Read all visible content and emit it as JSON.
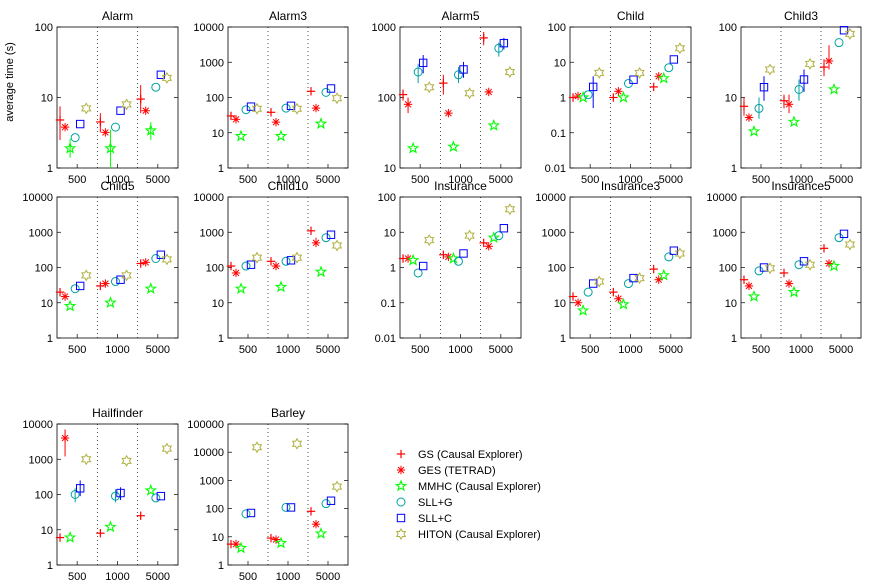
{
  "legend": {
    "placement": "bottom-right",
    "items": [
      {
        "key": "GS",
        "label": "GS (Causal Explorer)",
        "marker": "plus",
        "color": "#ff0000"
      },
      {
        "key": "GES",
        "label": "GES (TETRAD)",
        "marker": "asterisk",
        "color": "#ff0000"
      },
      {
        "key": "MMHC",
        "label": "MMHC (Causal Explorer)",
        "marker": "pentagram",
        "color": "#00ff00"
      },
      {
        "key": "SLLG",
        "label": "SLL+G",
        "marker": "circle",
        "color": "#00a0a0"
      },
      {
        "key": "SLLC",
        "label": "SLL+C",
        "marker": "square",
        "color": "#0000ff"
      },
      {
        "key": "HITON",
        "label": "HITON (Causal Explorer)",
        "marker": "hexagram",
        "color": "#b0b040"
      }
    ]
  },
  "chart_data": [
    {
      "type": "scatter",
      "title": "Alarm",
      "ylabel": "average time (s)",
      "yscale": "log",
      "ylim": [
        1,
        100
      ],
      "yticks": [
        "1",
        "10",
        "100"
      ],
      "categories": [
        "500",
        "1000",
        "5000"
      ],
      "series": [
        {
          "key": "GS",
          "values": [
            4.8,
            4.5,
            9.5
          ],
          "err": [
            [
              2.5,
              7.5
            ],
            [
              3.2,
              6
            ],
            [
              6,
              15
            ]
          ]
        },
        {
          "key": "GES",
          "values": [
            3.8,
            3.2,
            6.5
          ]
        },
        {
          "key": "MMHC",
          "values": [
            1.9,
            1.9,
            3.4
          ],
          "err": [
            [
              1.4,
              2.6
            ],
            [
              1,
              3.5
            ],
            [
              2.5,
              4.5
            ]
          ]
        },
        {
          "key": "SLLG",
          "values": [
            2.7,
            3.8,
            14
          ]
        },
        {
          "key": "SLLC",
          "values": [
            4.2,
            6.5,
            21
          ]
        },
        {
          "key": "HITON",
          "values": [
            7,
            8,
            19
          ]
        }
      ]
    },
    {
      "type": "scatter",
      "title": "Alarm3",
      "yscale": "log",
      "ylim": [
        1,
        10000
      ],
      "yticks": [
        "1",
        "10",
        "100",
        "1000",
        "10000"
      ],
      "categories": [
        "500",
        "1000",
        "5000"
      ],
      "series": [
        {
          "key": "GS",
          "values": [
            30,
            38,
            150
          ]
        },
        {
          "key": "GES",
          "values": [
            24,
            20,
            50
          ]
        },
        {
          "key": "MMHC",
          "values": [
            8,
            8,
            18
          ]
        },
        {
          "key": "SLLG",
          "values": [
            45,
            50,
            140
          ]
        },
        {
          "key": "SLLC",
          "values": [
            55,
            58,
            180
          ]
        },
        {
          "key": "HITON",
          "values": [
            48,
            48,
            95
          ]
        }
      ]
    },
    {
      "type": "scatter",
      "title": "Alarm5",
      "yscale": "log",
      "ylim": [
        10,
        1000
      ],
      "yticks": [
        "10",
        "100",
        "1000"
      ],
      "categories": [
        "500",
        "1000",
        "5000"
      ],
      "series": [
        {
          "key": "GS",
          "values": [
            110,
            160,
            700
          ],
          "err": [
            [
              90,
              130
            ],
            [
              110,
              210
            ],
            [
              550,
              850
            ]
          ]
        },
        {
          "key": "GES",
          "values": [
            80,
            60,
            120
          ],
          "err": [
            [
              60,
              100
            ],
            null,
            null
          ]
        },
        {
          "key": "MMHC",
          "values": [
            19,
            20,
            40
          ]
        },
        {
          "key": "SLLG",
          "values": [
            230,
            210,
            500
          ],
          "err": [
            [
              160,
              300
            ],
            [
              160,
              270
            ],
            [
              380,
              600
            ]
          ]
        },
        {
          "key": "SLLC",
          "values": [
            310,
            250,
            590
          ],
          "err": [
            [
              220,
              400
            ],
            [
              190,
              320
            ],
            [
              480,
              700
            ]
          ]
        },
        {
          "key": "HITON",
          "values": [
            140,
            115,
            230
          ]
        }
      ]
    },
    {
      "type": "scatter",
      "title": "Child",
      "yscale": "log",
      "ylim": [
        0.01,
        100
      ],
      "yticks": [
        "0.01",
        "0.1",
        "1",
        "10",
        "100"
      ],
      "categories": [
        "500",
        "1000",
        "5000"
      ],
      "series": [
        {
          "key": "GS",
          "values": [
            1,
            1,
            2
          ]
        },
        {
          "key": "GES",
          "values": [
            1.1,
            1.5,
            4
          ]
        },
        {
          "key": "MMHC",
          "values": [
            1,
            1,
            3.5
          ]
        },
        {
          "key": "SLLG",
          "values": [
            1.2,
            2.5,
            7
          ]
        },
        {
          "key": "SLLC",
          "values": [
            2,
            3.2,
            12
          ],
          "err": [
            [
              0.5,
              4
            ],
            null,
            null
          ]
        },
        {
          "key": "HITON",
          "values": [
            5,
            5,
            25
          ]
        }
      ]
    },
    {
      "type": "scatter",
      "title": "Child3",
      "yscale": "log",
      "ylim": [
        1,
        100
      ],
      "yticks": [
        "1",
        "10",
        "100"
      ],
      "categories": [
        "500",
        "1000",
        "5000"
      ],
      "series": [
        {
          "key": "GS",
          "values": [
            7.5,
            9,
            27
          ],
          "err": [
            [
              5.5,
              10
            ],
            [
              7,
              11
            ],
            [
              20,
              35
            ]
          ]
        },
        {
          "key": "GES",
          "values": [
            5.2,
            8,
            33
          ],
          "err": [
            null,
            [
              6,
              11
            ],
            [
              25,
              55
            ]
          ]
        },
        {
          "key": "MMHC",
          "values": [
            3.3,
            4.5,
            13
          ]
        },
        {
          "key": "SLLG",
          "values": [
            7,
            13,
            60
          ],
          "err": [
            [
              5,
              10
            ],
            [
              9,
              18
            ],
            null
          ]
        },
        {
          "key": "SLLC",
          "values": [
            14,
            18,
            90
          ],
          "err": [
            [
              9,
              20
            ],
            [
              12,
              25
            ],
            null
          ]
        },
        {
          "key": "HITON",
          "values": [
            25,
            30,
            80
          ]
        }
      ]
    },
    {
      "type": "scatter",
      "title": "Child5",
      "yscale": "log",
      "ylim": [
        1,
        10000
      ],
      "yticks": [
        "1",
        "10",
        "100",
        "1000",
        "10000"
      ],
      "categories": [
        "500",
        "1000",
        "5000"
      ],
      "series": [
        {
          "key": "GS",
          "values": [
            20,
            30,
            130
          ]
        },
        {
          "key": "GES",
          "values": [
            15,
            35,
            140
          ]
        },
        {
          "key": "MMHC",
          "values": [
            8,
            10,
            25
          ]
        },
        {
          "key": "SLLG",
          "values": [
            25,
            40,
            180
          ]
        },
        {
          "key": "SLLC",
          "values": [
            30,
            45,
            230
          ]
        },
        {
          "key": "HITON",
          "values": [
            60,
            60,
            170
          ]
        }
      ]
    },
    {
      "type": "scatter",
      "title": "Child10",
      "yscale": "log",
      "ylim": [
        1,
        10000
      ],
      "yticks": [
        "1",
        "10",
        "100",
        "1000",
        "10000"
      ],
      "categories": [
        "500",
        "1000",
        "5000"
      ],
      "series": [
        {
          "key": "GS",
          "values": [
            110,
            150,
            1100
          ]
        },
        {
          "key": "GES",
          "values": [
            70,
            110,
            500
          ],
          "err": [
            null,
            null,
            [
              380,
              700
            ]
          ]
        },
        {
          "key": "MMHC",
          "values": [
            25,
            28,
            75
          ]
        },
        {
          "key": "SLLG",
          "values": [
            110,
            150,
            700
          ]
        },
        {
          "key": "SLLC",
          "values": [
            120,
            160,
            850
          ]
        },
        {
          "key": "HITON",
          "values": [
            190,
            190,
            420
          ]
        }
      ]
    },
    {
      "type": "scatter",
      "title": "Insurance",
      "yscale": "log",
      "ylim": [
        0.01,
        100
      ],
      "yticks": [
        "0.01",
        "0.1",
        "1",
        "10",
        "100"
      ],
      "categories": [
        "500",
        "1000",
        "5000"
      ],
      "series": [
        {
          "key": "GS",
          "values": [
            1.8,
            2.3,
            5
          ]
        },
        {
          "key": "GES",
          "values": [
            1.8,
            2,
            4
          ]
        },
        {
          "key": "MMHC",
          "values": [
            1.6,
            1.8,
            7
          ]
        },
        {
          "key": "SLLG",
          "values": [
            0.7,
            1.5,
            8
          ]
        },
        {
          "key": "SLLC",
          "values": [
            1.1,
            2.5,
            13
          ]
        },
        {
          "key": "HITON",
          "values": [
            6,
            8,
            45
          ]
        }
      ]
    },
    {
      "type": "scatter",
      "title": "Insurance3",
      "yscale": "log",
      "ylim": [
        1,
        10000
      ],
      "yticks": [
        "1",
        "10",
        "100",
        "1000",
        "10000"
      ],
      "categories": [
        "500",
        "1000",
        "5000"
      ],
      "series": [
        {
          "key": "GS",
          "values": [
            15,
            20,
            90
          ]
        },
        {
          "key": "GES",
          "values": [
            10,
            13,
            45
          ]
        },
        {
          "key": "MMHC",
          "values": [
            6,
            9,
            60
          ]
        },
        {
          "key": "SLLG",
          "values": [
            20,
            35,
            200
          ]
        },
        {
          "key": "SLLC",
          "values": [
            35,
            50,
            300
          ]
        },
        {
          "key": "HITON",
          "values": [
            40,
            50,
            250
          ]
        }
      ]
    },
    {
      "type": "scatter",
      "title": "Insurance5",
      "yscale": "log",
      "ylim": [
        1,
        10000
      ],
      "yticks": [
        "1",
        "10",
        "100",
        "1000",
        "10000"
      ],
      "categories": [
        "500",
        "1000",
        "5000"
      ],
      "series": [
        {
          "key": "GS",
          "values": [
            45,
            70,
            350
          ]
        },
        {
          "key": "GES",
          "values": [
            30,
            35,
            130
          ]
        },
        {
          "key": "MMHC",
          "values": [
            15,
            20,
            110
          ]
        },
        {
          "key": "SLLG",
          "values": [
            80,
            120,
            700
          ]
        },
        {
          "key": "SLLC",
          "values": [
            100,
            150,
            900
          ]
        },
        {
          "key": "HITON",
          "values": [
            95,
            120,
            450
          ]
        }
      ]
    },
    {
      "type": "scatter",
      "title": "Hailfinder",
      "yscale": "log",
      "ylim": [
        1,
        10000
      ],
      "yticks": [
        "1",
        "10",
        "100",
        "1000",
        "10000"
      ],
      "categories": [
        "500",
        "1000",
        "5000"
      ],
      "series": [
        {
          "key": "GS",
          "values": [
            6,
            8,
            25
          ]
        },
        {
          "key": "GES",
          "values": [
            4000,
            null,
            null
          ],
          "err": [
            [
              1200,
              7000
            ],
            null,
            null
          ]
        },
        {
          "key": "MMHC",
          "values": [
            6,
            12,
            130
          ]
        },
        {
          "key": "SLLG",
          "values": [
            100,
            90,
            80
          ],
          "err": [
            [
              60,
              150
            ],
            [
              60,
              140
            ],
            null
          ]
        },
        {
          "key": "SLLC",
          "values": [
            150,
            110,
            90
          ],
          "err": [
            [
              90,
              250
            ],
            [
              70,
              160
            ],
            null
          ]
        },
        {
          "key": "HITON",
          "values": [
            1000,
            900,
            2000
          ]
        }
      ]
    },
    {
      "type": "scatter",
      "title": "Barley",
      "yscale": "log",
      "ylim": [
        1,
        100000
      ],
      "yticks": [
        "1",
        "10",
        "100",
        "1000",
        "10000",
        "100000"
      ],
      "categories": [
        "500",
        "1000",
        "5000"
      ],
      "series": [
        {
          "key": "GS",
          "values": [
            5.5,
            9,
            80
          ]
        },
        {
          "key": "GES",
          "values": [
            5.5,
            8,
            28
          ]
        },
        {
          "key": "MMHC",
          "values": [
            4,
            6,
            13
          ]
        },
        {
          "key": "SLLG",
          "values": [
            65,
            110,
            150
          ]
        },
        {
          "key": "SLLC",
          "values": [
            70,
            110,
            190
          ]
        },
        {
          "key": "HITON",
          "values": [
            15000,
            20000,
            600
          ]
        }
      ]
    }
  ]
}
